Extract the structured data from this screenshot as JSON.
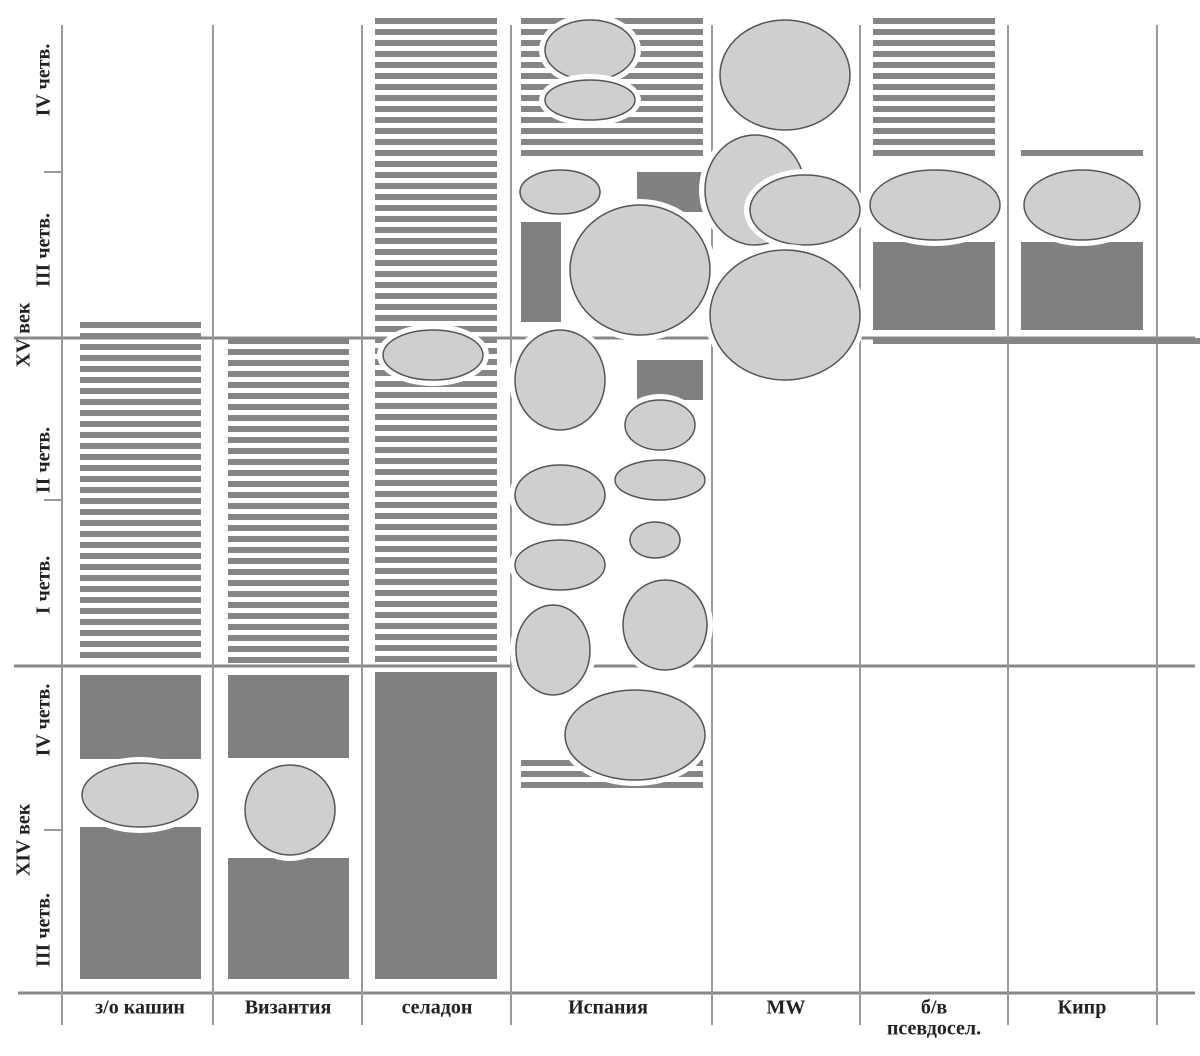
{
  "row_labels": [
    "IV четв.",
    "III четв.",
    "XV век",
    "II четв.",
    "I четв.",
    "IV четв.",
    "XIV век",
    "III четв."
  ],
  "columns": [
    {
      "label": "з/о кашин"
    },
    {
      "label": "Византия"
    },
    {
      "label": "селадон"
    },
    {
      "label": "Испания"
    },
    {
      "label": "MW"
    },
    {
      "label": "б/в",
      "sublabel": "псевдосел."
    },
    {
      "label": "Кипр"
    }
  ]
}
